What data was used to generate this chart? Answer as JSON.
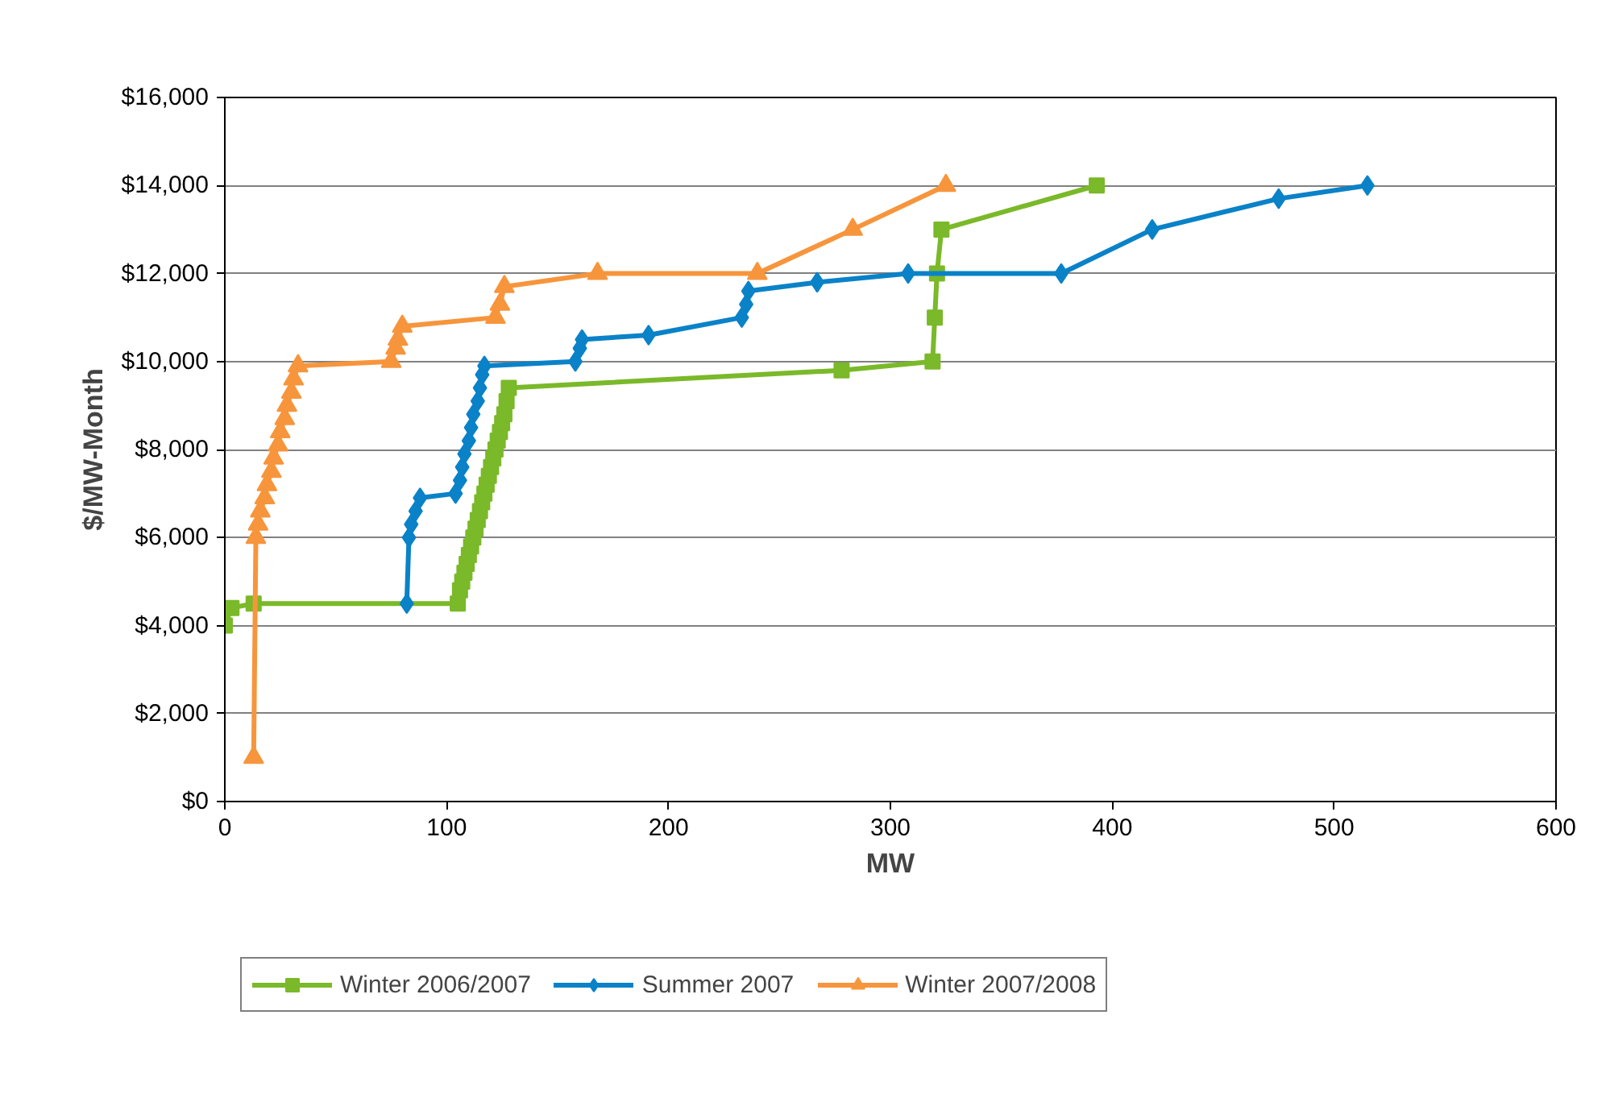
{
  "chart_data": {
    "type": "line",
    "xlabel": "MW",
    "ylabel": "$/MW-Month",
    "xlim": [
      0,
      600
    ],
    "ylim": [
      0,
      16000
    ],
    "xticks": [
      0,
      100,
      200,
      300,
      400,
      500,
      600
    ],
    "yticks": [
      {
        "value": 0,
        "label": "$0"
      },
      {
        "value": 2000,
        "label": "$2,000"
      },
      {
        "value": 4000,
        "label": "$4,000"
      },
      {
        "value": 6000,
        "label": "$6,000"
      },
      {
        "value": 8000,
        "label": "$8,000"
      },
      {
        "value": 10000,
        "label": "$10,000"
      },
      {
        "value": 12000,
        "label": "$12,000"
      },
      {
        "value": 14000,
        "label": "$14,000"
      },
      {
        "value": 16000,
        "label": "$16,000"
      }
    ],
    "grid": "y",
    "legend": "bottom",
    "series": [
      {
        "name": "Winter 2006/2007",
        "color": "#7ab929",
        "marker": "square",
        "x": [
          0,
          3,
          13,
          105,
          106,
          107,
          108,
          109,
          110,
          111,
          112,
          113,
          114,
          115,
          116,
          117,
          118,
          119,
          120,
          121,
          122,
          123,
          124,
          125,
          126,
          127,
          128,
          278,
          319,
          320,
          321,
          323,
          393
        ],
        "values": [
          4000,
          4400,
          4500,
          4500,
          4800,
          5000,
          5200,
          5400,
          5600,
          5800,
          6000,
          6200,
          6400,
          6600,
          6800,
          7000,
          7200,
          7400,
          7600,
          7800,
          8000,
          8200,
          8400,
          8600,
          8800,
          9100,
          9400,
          9800,
          10000,
          11000,
          12000,
          13000,
          14000
        ]
      },
      {
        "name": "Summer 2007",
        "color": "#0a82c8",
        "marker": "diamond",
        "x": [
          82,
          83,
          84,
          86,
          88,
          104,
          106,
          107,
          108,
          110,
          111,
          112,
          114,
          115,
          116,
          117,
          158,
          160,
          161,
          191,
          233,
          235,
          236,
          267,
          308,
          377,
          418,
          475,
          515
        ],
        "values": [
          4500,
          6000,
          6300,
          6600,
          6900,
          7000,
          7300,
          7600,
          7900,
          8200,
          8500,
          8800,
          9100,
          9400,
          9700,
          9900,
          10000,
          10300,
          10500,
          10600,
          11000,
          11300,
          11600,
          11800,
          12000,
          12000,
          13000,
          13700,
          14000
        ]
      },
      {
        "name": "Winter 2007/2008",
        "color": "#f7953c",
        "marker": "triangle",
        "x": [
          13,
          14,
          15,
          16,
          18,
          19,
          21,
          22,
          24,
          25,
          27,
          28,
          30,
          31,
          33,
          75,
          77,
          78,
          80,
          122,
          124,
          126,
          168,
          240,
          283,
          325
        ],
        "values": [
          1000,
          6000,
          6300,
          6600,
          6900,
          7200,
          7500,
          7800,
          8100,
          8400,
          8700,
          9000,
          9300,
          9600,
          9900,
          10000,
          10300,
          10500,
          10800,
          11000,
          11300,
          11700,
          12000,
          12000,
          13000,
          14000
        ]
      }
    ]
  }
}
